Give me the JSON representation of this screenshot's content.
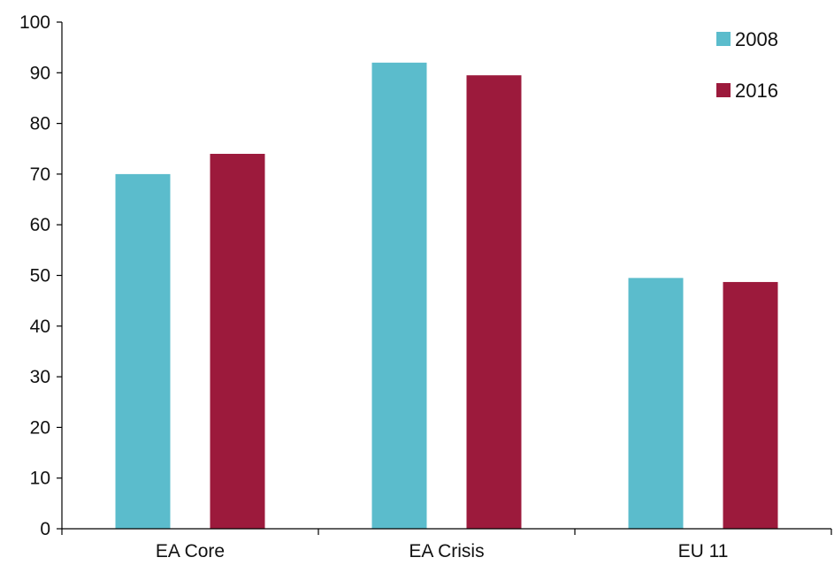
{
  "chart_data": {
    "type": "bar",
    "title": "",
    "xlabel": "",
    "ylabel": "",
    "categories": [
      "EA Core",
      "EA Crisis",
      "EU 11"
    ],
    "series": [
      {
        "name": "2008",
        "color": "#5bbccc",
        "values": [
          70,
          92,
          49.5
        ]
      },
      {
        "name": "2016",
        "color": "#9c1a3c",
        "values": [
          74,
          89.5,
          48.7
        ]
      }
    ],
    "ylim": [
      0,
      100
    ],
    "yticks": [
      "0",
      "10",
      "20",
      "30",
      "40",
      "50",
      "60",
      "70",
      "80",
      "90",
      "100"
    ],
    "grid": false,
    "legend_position": "top-right"
  }
}
